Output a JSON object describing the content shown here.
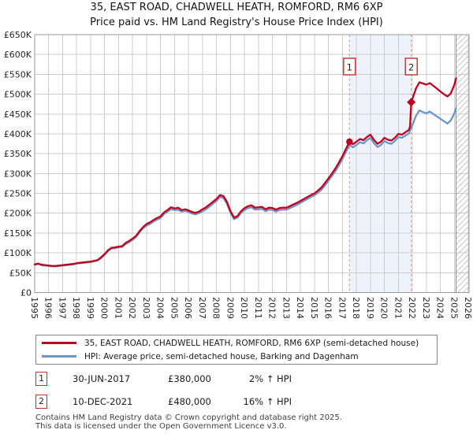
{
  "title": "35, EAST ROAD, CHADWELL HEATH, ROMFORD, RM6 6XP",
  "subtitle": "Price paid vs. HM Land Registry's House Price Index (HPI)",
  "chart_data": {
    "type": "line",
    "x_unit": "year",
    "y_unit": "GBP thousands",
    "xlim": [
      1995,
      2026.05
    ],
    "ylim": [
      0,
      650
    ],
    "grid": true,
    "y_tick_step": 50,
    "y_tick_labels": [
      "£0",
      "£50K",
      "£100K",
      "£150K",
      "£200K",
      "£250K",
      "£300K",
      "£350K",
      "£400K",
      "£450K",
      "£500K",
      "£550K",
      "£600K",
      "£650K"
    ],
    "x_tick_labels": [
      "1995",
      "1996",
      "1997",
      "1998",
      "1999",
      "2000",
      "2001",
      "2002",
      "2003",
      "2004",
      "2005",
      "2006",
      "2007",
      "2008",
      "2009",
      "2010",
      "2011",
      "2012",
      "2013",
      "2014",
      "2015",
      "2016",
      "2017",
      "2018",
      "2019",
      "2020",
      "2021",
      "2022",
      "2023",
      "2024",
      "2025",
      "2026"
    ],
    "colors": {
      "price_line": "#c00020",
      "hpi_line": "#6d96c8",
      "band": "#eef3fb",
      "dashed_marker_line": "#f28e8e",
      "grid": "#cccccc",
      "frame": "#999999",
      "hatch": "#c4c4c4",
      "hatch_edge": "#8a8a8a",
      "flag_border": "#c03030"
    },
    "sales_band": {
      "from": 2017.5,
      "to": 2021.92
    },
    "future_hatch_from": 2025.12,
    "markers": [
      {
        "label": "1",
        "year": 2017.5,
        "value": 380,
        "shape": "circle"
      },
      {
        "label": "2",
        "year": 2021.92,
        "value": 480,
        "shape": "diamond"
      }
    ],
    "x": [
      1995,
      1995.25,
      1995.5,
      1995.75,
      1996,
      1996.25,
      1996.5,
      1996.75,
      1997,
      1997.25,
      1997.5,
      1997.75,
      1998,
      1998.25,
      1998.5,
      1998.75,
      1999,
      1999.25,
      1999.5,
      1999.75,
      2000,
      2000.25,
      2000.5,
      2000.75,
      2001,
      2001.25,
      2001.5,
      2001.75,
      2002,
      2002.25,
      2002.5,
      2002.75,
      2003,
      2003.25,
      2003.5,
      2003.75,
      2004,
      2004.25,
      2004.5,
      2004.75,
      2005,
      2005.25,
      2005.5,
      2005.75,
      2006,
      2006.25,
      2006.5,
      2006.75,
      2007,
      2007.25,
      2007.5,
      2007.75,
      2008,
      2008.25,
      2008.5,
      2008.75,
      2009,
      2009.25,
      2009.5,
      2009.75,
      2010,
      2010.25,
      2010.5,
      2010.75,
      2011,
      2011.25,
      2011.5,
      2011.75,
      2012,
      2012.25,
      2012.5,
      2012.75,
      2013,
      2013.25,
      2013.5,
      2013.75,
      2014,
      2014.25,
      2014.5,
      2014.75,
      2015,
      2015.25,
      2015.5,
      2015.75,
      2016,
      2016.25,
      2016.5,
      2016.75,
      2017,
      2017.25,
      2017.5,
      2017.75,
      2018,
      2018.25,
      2018.5,
      2018.75,
      2019,
      2019.25,
      2019.5,
      2019.75,
      2020,
      2020.25,
      2020.5,
      2020.75,
      2021,
      2021.25,
      2021.5,
      2021.75,
      2021.83,
      2021.92,
      2022,
      2022.25,
      2022.5,
      2022.75,
      2023,
      2023.25,
      2023.5,
      2023.75,
      2024,
      2024.25,
      2024.5,
      2024.75,
      2025,
      2025.12
    ],
    "series": [
      {
        "name": "35, EAST ROAD, CHADWELL HEATH, ROMFORD, RM6 6XP (semi-detached house)",
        "key": "price",
        "values": [
          71,
          73,
          70,
          69,
          68,
          67,
          67,
          68,
          69,
          70,
          71,
          72,
          74,
          75,
          76,
          77,
          78,
          80,
          82,
          89,
          97,
          107,
          113,
          114,
          116,
          117,
          125,
          130,
          136,
          143,
          155,
          165,
          173,
          177,
          183,
          188,
          192,
          202,
          208,
          215,
          212,
          214,
          208,
          210,
          207,
          203,
          201,
          204,
          210,
          215,
          222,
          229,
          236,
          246,
          243,
          228,
          205,
          189,
          193,
          205,
          213,
          218,
          220,
          214,
          215,
          216,
          210,
          214,
          213,
          209,
          213,
          214,
          214,
          218,
          222,
          226,
          231,
          236,
          241,
          246,
          250,
          257,
          265,
          276,
          288,
          300,
          313,
          328,
          344,
          362,
          380,
          374,
          380,
          387,
          384,
          392,
          398,
          385,
          375,
          380,
          390,
          385,
          383,
          390,
          400,
          398,
          404,
          410,
          418,
          480,
          488,
          514,
          530,
          527,
          524,
          528,
          521,
          514,
          507,
          500,
          494,
          502,
          524,
          540
        ]
      },
      {
        "name": "HPI: Average price, semi-detached house, Barking and Dagenham",
        "key": "hpi",
        "values": [
          70,
          72,
          69,
          68,
          67,
          66,
          66,
          67,
          68,
          69,
          70,
          71,
          73,
          74,
          75,
          76,
          77,
          79,
          81,
          87,
          95,
          105,
          111,
          112,
          114,
          115,
          122,
          127,
          133,
          140,
          152,
          162,
          169,
          173,
          179,
          184,
          188,
          198,
          204,
          210,
          208,
          209,
          204,
          206,
          203,
          199,
          197,
          200,
          205,
          210,
          217,
          224,
          231,
          241,
          238,
          223,
          201,
          185,
          189,
          201,
          208,
          213,
          215,
          209,
          210,
          211,
          205,
          209,
          208,
          204,
          208,
          209,
          209,
          213,
          217,
          221,
          226,
          231,
          236,
          241,
          245,
          252,
          259,
          270,
          282,
          294,
          306,
          321,
          337,
          354,
          372,
          366,
          372,
          379,
          376,
          384,
          390,
          377,
          367,
          372,
          382,
          377,
          375,
          382,
          392,
          390,
          396,
          401,
          409,
          413,
          422,
          445,
          459,
          455,
          452,
          456,
          450,
          444,
          438,
          432,
          426,
          434,
          452,
          465
        ]
      }
    ]
  },
  "legend": {
    "items": [
      {
        "label": "35, EAST ROAD, CHADWELL HEATH, ROMFORD, RM6 6XP (semi-detached house)",
        "color": "#c00020"
      },
      {
        "label": "HPI: Average price, semi-detached house, Barking and Dagenham",
        "color": "#6d96c8"
      }
    ]
  },
  "transactions": [
    {
      "num": "1",
      "date": "30-JUN-2017",
      "price": "£380,000",
      "change": "2% ↑ HPI"
    },
    {
      "num": "2",
      "date": "10-DEC-2021",
      "price": "£480,000",
      "change": "16% ↑ HPI"
    }
  ],
  "footer": {
    "line1": "Contains HM Land Registry data © Crown copyright and database right 2025.",
    "line2": "This data is licensed under the Open Government Licence v3.0."
  }
}
